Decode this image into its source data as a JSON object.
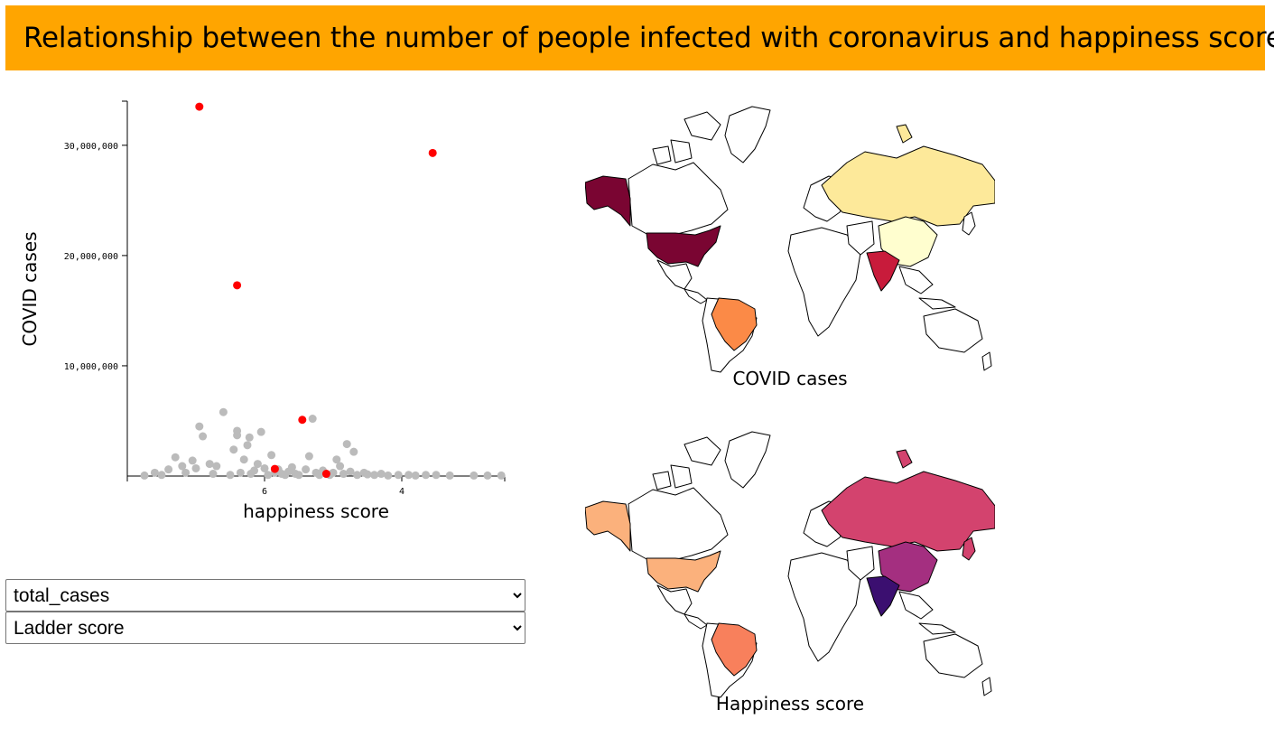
{
  "header": {
    "title": "Relationship between the number of people infected with coronavirus and happiness score"
  },
  "chart_data": {
    "type": "scatter",
    "xlabel": "happiness score",
    "ylabel": "COVID cases",
    "x_reversed": true,
    "xlim": [
      8,
      2.5
    ],
    "ylim": [
      0,
      34000000
    ],
    "x_ticks": [
      6,
      4
    ],
    "x_tick_labels": [
      "6",
      "4"
    ],
    "y_ticks": [
      10000000,
      20000000,
      30000000
    ],
    "y_tick_labels": [
      "10,000,000",
      "20,000,000",
      "30,000,000"
    ],
    "colors": {
      "highlight": "#ff0000",
      "default": "#bbbbbb"
    },
    "highlighted": [
      {
        "x": 6.95,
        "y": 33500000
      },
      {
        "x": 3.55,
        "y": 29300000
      },
      {
        "x": 6.4,
        "y": 17300000
      },
      {
        "x": 5.45,
        "y": 5100000
      },
      {
        "x": 5.85,
        "y": 650000
      },
      {
        "x": 5.1,
        "y": 200000
      }
    ],
    "points": [
      {
        "x": 7.75,
        "y": 50000
      },
      {
        "x": 7.6,
        "y": 300000
      },
      {
        "x": 7.5,
        "y": 100000
      },
      {
        "x": 7.4,
        "y": 600000
      },
      {
        "x": 7.3,
        "y": 1700000
      },
      {
        "x": 7.2,
        "y": 900000
      },
      {
        "x": 7.15,
        "y": 300000
      },
      {
        "x": 7.05,
        "y": 1400000
      },
      {
        "x": 7.0,
        "y": 700000
      },
      {
        "x": 6.95,
        "y": 4500000
      },
      {
        "x": 6.9,
        "y": 3600000
      },
      {
        "x": 6.8,
        "y": 1100000
      },
      {
        "x": 6.75,
        "y": 200000
      },
      {
        "x": 6.7,
        "y": 900000
      },
      {
        "x": 6.6,
        "y": 5800000
      },
      {
        "x": 6.5,
        "y": 100000
      },
      {
        "x": 6.45,
        "y": 2400000
      },
      {
        "x": 6.4,
        "y": 4100000
      },
      {
        "x": 6.4,
        "y": 3700000
      },
      {
        "x": 6.35,
        "y": 300000
      },
      {
        "x": 6.3,
        "y": 1500000
      },
      {
        "x": 6.25,
        "y": 2800000
      },
      {
        "x": 6.22,
        "y": 3500000
      },
      {
        "x": 6.2,
        "y": 200000
      },
      {
        "x": 6.15,
        "y": 500000
      },
      {
        "x": 6.1,
        "y": 1100000
      },
      {
        "x": 6.05,
        "y": 4000000
      },
      {
        "x": 6.0,
        "y": 700000
      },
      {
        "x": 5.95,
        "y": 100000
      },
      {
        "x": 5.9,
        "y": 1900000
      },
      {
        "x": 5.85,
        "y": 300000
      },
      {
        "x": 5.8,
        "y": 600000
      },
      {
        "x": 5.75,
        "y": 200000
      },
      {
        "x": 5.7,
        "y": 100000
      },
      {
        "x": 5.65,
        "y": 400000
      },
      {
        "x": 5.6,
        "y": 800000
      },
      {
        "x": 5.55,
        "y": 200000
      },
      {
        "x": 5.5,
        "y": 100000
      },
      {
        "x": 5.4,
        "y": 600000
      },
      {
        "x": 5.35,
        "y": 1800000
      },
      {
        "x": 5.3,
        "y": 5200000
      },
      {
        "x": 5.25,
        "y": 300000
      },
      {
        "x": 5.2,
        "y": 100000
      },
      {
        "x": 5.15,
        "y": 500000
      },
      {
        "x": 5.1,
        "y": 200000
      },
      {
        "x": 5.05,
        "y": 100000
      },
      {
        "x": 5.0,
        "y": 300000
      },
      {
        "x": 4.95,
        "y": 1500000
      },
      {
        "x": 4.9,
        "y": 900000
      },
      {
        "x": 4.85,
        "y": 200000
      },
      {
        "x": 4.8,
        "y": 2900000
      },
      {
        "x": 4.75,
        "y": 400000
      },
      {
        "x": 4.7,
        "y": 2200000
      },
      {
        "x": 4.65,
        "y": 100000
      },
      {
        "x": 4.55,
        "y": 300000
      },
      {
        "x": 4.5,
        "y": 150000
      },
      {
        "x": 4.4,
        "y": 100000
      },
      {
        "x": 4.3,
        "y": 200000
      },
      {
        "x": 4.2,
        "y": 50000
      },
      {
        "x": 4.05,
        "y": 100000
      },
      {
        "x": 3.9,
        "y": 100000
      },
      {
        "x": 3.8,
        "y": 50000
      },
      {
        "x": 3.65,
        "y": 100000
      },
      {
        "x": 3.5,
        "y": 100000
      },
      {
        "x": 3.3,
        "y": 50000
      },
      {
        "x": 2.95,
        "y": 50000
      },
      {
        "x": 2.75,
        "y": 50000
      },
      {
        "x": 2.55,
        "y": 50000
      }
    ]
  },
  "controls": {
    "case_select": {
      "selected": "total_cases"
    },
    "score_select": {
      "selected": "Ladder score"
    }
  },
  "maps": {
    "top": {
      "label": "COVID cases",
      "palette": [
        "#fffecf",
        "#fde99a",
        "#fb8a47",
        "#c81b3b",
        "#7a0532"
      ]
    },
    "bottom": {
      "label": "Happiness score",
      "palette": [
        "#fbb17c",
        "#f8805c",
        "#d3436e",
        "#a42f80",
        "#3b0f70"
      ]
    }
  }
}
